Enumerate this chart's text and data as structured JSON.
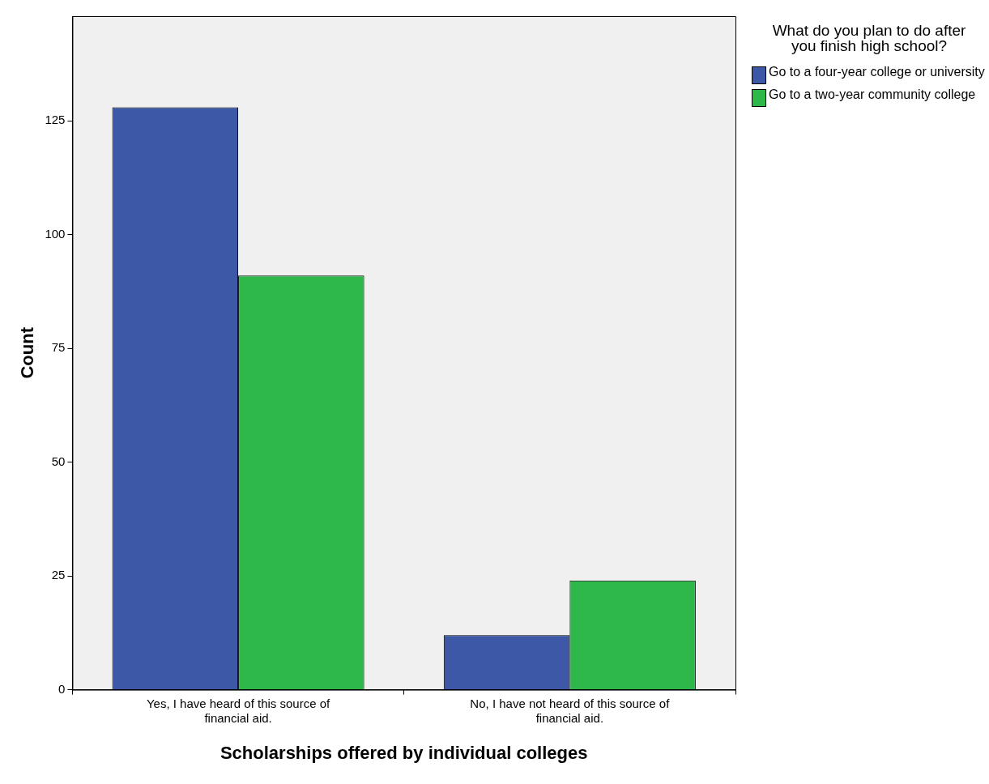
{
  "chart_data": {
    "type": "bar",
    "xlabel": "Scholarships offered by individual colleges",
    "ylabel": "Count",
    "legend_title": "What do you plan to do after you finish high school?",
    "categories": [
      "Yes, I have heard of this source of financial aid.",
      "No, I have not heard of this source of financial aid."
    ],
    "series": [
      {
        "name": "Go to a four-year college or university",
        "color": "#3e58a8",
        "values": [
          128,
          12
        ]
      },
      {
        "name": "Go to a two-year community college",
        "color": "#2fb84a",
        "values": [
          91,
          24
        ]
      }
    ],
    "ylim": [
      0,
      148
    ],
    "yticks": [
      0,
      25,
      50,
      75,
      100,
      125
    ],
    "grid": false,
    "legend": "top right"
  }
}
